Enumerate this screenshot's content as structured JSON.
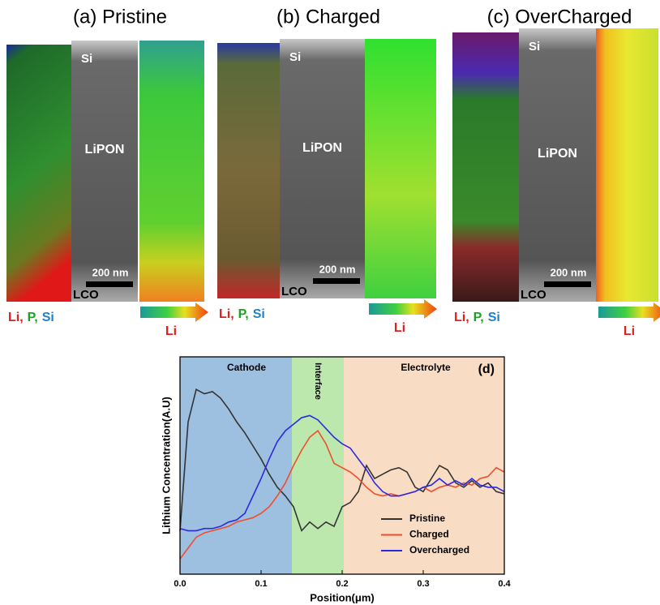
{
  "panels": [
    {
      "title": "(a) Pristine",
      "si": "Si",
      "lipon": "LiPON",
      "scale": "200 nm",
      "lco": "LCO",
      "elements": [
        "Li,",
        "P,",
        "Si"
      ],
      "li": "Li"
    },
    {
      "title": "(b) Charged",
      "si": "Si",
      "lipon": "LiPON",
      "scale": "200 nm",
      "lco": "LCO",
      "elements": [
        "Li,",
        "P,",
        "Si"
      ],
      "li": "Li"
    },
    {
      "title": "(c) OverCharged",
      "si": "Si",
      "lipon": "LiPON",
      "scale": "200 nm",
      "lco": "LCO",
      "elements": [
        "Li,",
        "P,",
        "Si"
      ],
      "li": "Li"
    }
  ],
  "chart_data": {
    "type": "line",
    "panel_label": "(d)",
    "x_label": "Position(μm)",
    "y_label": "Lithium Concentration(A.U)",
    "xlim": [
      0,
      0.4
    ],
    "xticks": [
      {
        "value": 0,
        "label": "0.0"
      },
      0.1,
      0.2,
      0.3,
      0.4
    ],
    "ylim": [
      0,
      1
    ],
    "regions": [
      {
        "label": "Cathode",
        "start": 0,
        "end": 0.138,
        "color": "#9dbfe0"
      },
      {
        "label": "Interface",
        "start": 0.138,
        "end": 0.202,
        "color": "#bde8ad"
      },
      {
        "label": "Electrolyte",
        "start": 0.202,
        "end": 0.4,
        "color": "#f9dcc4"
      }
    ],
    "x": [
      0,
      0.01,
      0.02,
      0.03,
      0.04,
      0.05,
      0.06,
      0.07,
      0.08,
      0.09,
      0.1,
      0.11,
      0.12,
      0.13,
      0.14,
      0.15,
      0.16,
      0.17,
      0.18,
      0.19,
      0.2,
      0.21,
      0.22,
      0.23,
      0.24,
      0.25,
      0.26,
      0.27,
      0.28,
      0.29,
      0.3,
      0.31,
      0.32,
      0.33,
      0.34,
      0.35,
      0.36,
      0.37,
      0.38,
      0.39,
      0.4
    ],
    "series": [
      {
        "name": "Pristine",
        "color": "#333333",
        "values": [
          0.2,
          0.7,
          0.85,
          0.83,
          0.84,
          0.81,
          0.76,
          0.7,
          0.65,
          0.59,
          0.53,
          0.46,
          0.4,
          0.36,
          0.31,
          0.2,
          0.24,
          0.21,
          0.24,
          0.22,
          0.31,
          0.33,
          0.38,
          0.5,
          0.44,
          0.46,
          0.48,
          0.49,
          0.47,
          0.4,
          0.38,
          0.44,
          0.5,
          0.48,
          0.42,
          0.4,
          0.43,
          0.4,
          0.42,
          0.38,
          0.37
        ]
      },
      {
        "name": "Charged",
        "color": "#f04e2a",
        "values": [
          0.07,
          0.12,
          0.17,
          0.19,
          0.2,
          0.21,
          0.22,
          0.24,
          0.25,
          0.26,
          0.28,
          0.31,
          0.36,
          0.42,
          0.5,
          0.57,
          0.63,
          0.66,
          0.6,
          0.51,
          0.49,
          0.47,
          0.44,
          0.4,
          0.37,
          0.36,
          0.37,
          0.36,
          0.37,
          0.38,
          0.4,
          0.38,
          0.4,
          0.41,
          0.4,
          0.42,
          0.41,
          0.44,
          0.45,
          0.49,
          0.47
        ]
      },
      {
        "name": "Overcharged",
        "color": "#2a2ae0",
        "values": [
          0.21,
          0.2,
          0.2,
          0.21,
          0.21,
          0.22,
          0.24,
          0.25,
          0.28,
          0.36,
          0.44,
          0.53,
          0.61,
          0.66,
          0.69,
          0.72,
          0.73,
          0.71,
          0.67,
          0.63,
          0.6,
          0.58,
          0.53,
          0.48,
          0.42,
          0.38,
          0.36,
          0.36,
          0.37,
          0.38,
          0.4,
          0.41,
          0.44,
          0.41,
          0.43,
          0.41,
          0.44,
          0.41,
          0.4,
          0.4,
          0.38
        ]
      }
    ]
  }
}
